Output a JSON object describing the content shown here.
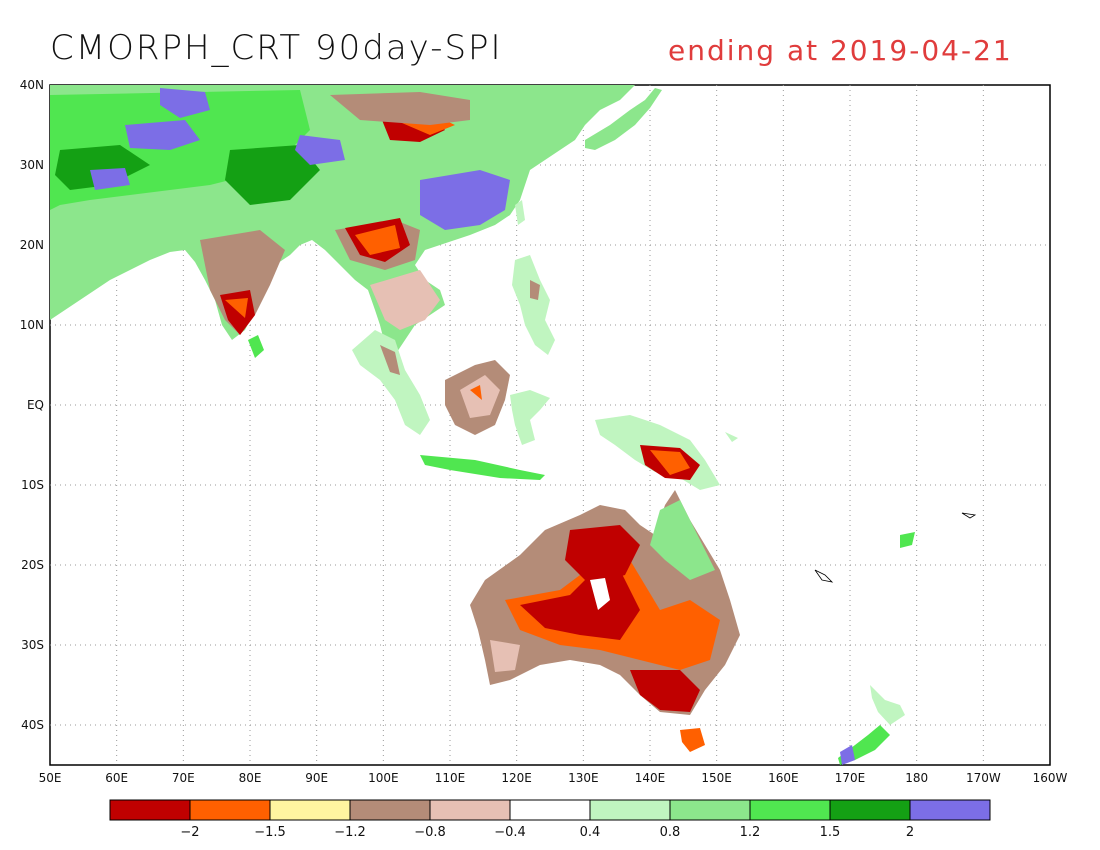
{
  "title": "CMORPH_CRT 90day-SPI",
  "subtitle": "ending at 2019-04-21",
  "map": {
    "lat_labels": [
      "40N",
      "30N",
      "20N",
      "10N",
      "EQ",
      "10S",
      "20S",
      "30S",
      "40S"
    ],
    "lon_labels": [
      "50E",
      "60E",
      "70E",
      "80E",
      "90E",
      "100E",
      "110E",
      "120E",
      "130E",
      "140E",
      "150E",
      "160E",
      "170E",
      "180",
      "170W",
      "160W"
    ],
    "grid": "dotted"
  },
  "colorbar": {
    "colors": [
      "#c00000",
      "#ff6000",
      "#fff5a0",
      "#b48c78",
      "#e6c0b4",
      "#ffffff",
      "#c0f5c0",
      "#8ce68c",
      "#50e650",
      "#14a014",
      "#7c6ee6"
    ],
    "labels": [
      "-2",
      "-1.5",
      "-1.2",
      "-0.8",
      "-0.4",
      "0.4",
      "0.8",
      "1.2",
      "1.5",
      "2"
    ]
  }
}
